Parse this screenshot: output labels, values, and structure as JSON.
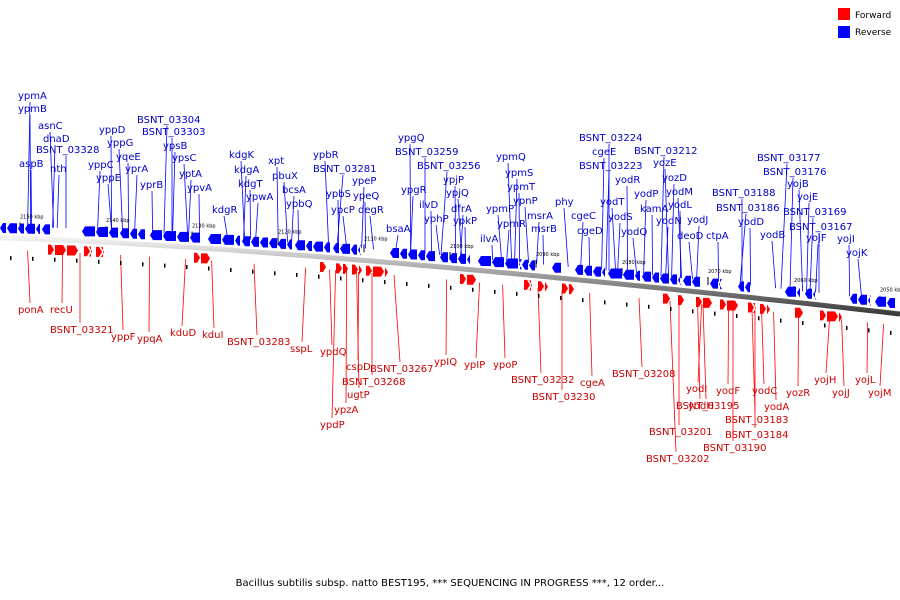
{
  "colors": {
    "forward": "#ff0000",
    "reverse": "#0000ff",
    "fwd_label": "#cc0000",
    "rev_label": "#0000cc",
    "axis": "#808080"
  },
  "legend": [
    {
      "label": "Forward",
      "color": "#ff0000"
    },
    {
      "label": "Reverse",
      "color": "#0000ff"
    }
  ],
  "caption": "Bacillus subtilis subsp. natto BEST195, *** SEQUENCING IN PROGRESS ***, 12 order...",
  "ticks": [
    "2150 kbp",
    "2140 kbp",
    "2130 kbp",
    "2120 kbp",
    "2110 kbp",
    "2100 kbp",
    "2090 kbp",
    "2080 kbp",
    "2070 kbp",
    "2060 kbp",
    "2050 kbp"
  ],
  "reverse_genes": [
    "ypmA",
    "ypmB",
    "asnC",
    "dnaD",
    "aspB",
    "BSNT_03328",
    "nth",
    "yppD",
    "yppG",
    "yppC",
    "yqeE",
    "yppE",
    "ypsB",
    "BSNT_03304",
    "BSNT_03303",
    "yprA",
    "yprB",
    "ypsC",
    "yptA",
    "ypvA",
    "kdgK",
    "kdgA",
    "kdgT",
    "kdgR",
    "ypwA",
    "xpt",
    "pbuX",
    "bcsA",
    "ypbQ",
    "ypbR",
    "BSNT_03281",
    "ypbS",
    "ypcP",
    "ypeP",
    "ypeQ",
    "degR",
    "bsaA",
    "ypgQ",
    "BSNT_03259",
    "ypgR",
    "ilvD",
    "yphP",
    "BSNT_03256",
    "ypjP",
    "ypjQ",
    "dfrA",
    "ypkP",
    "ypmQ",
    "ypmS",
    "ypmT",
    "ypmP",
    "ypmR",
    "ilvA",
    "ypnP",
    "msrA",
    "msrB",
    "phy",
    "cgeC",
    "cgeD",
    "BSNT_03224",
    "cgeE",
    "BSNT_03223",
    "yodT",
    "yodS",
    "yodR",
    "yodQ",
    "yodP",
    "BSNT_03212",
    "yozE",
    "yozD",
    "kamA",
    "yodM",
    "yodN",
    "yodL",
    "deoD",
    "yodJ",
    "ctpA",
    "BSNT_03188",
    "BSNT_03186",
    "yodD",
    "yodB",
    "BSNT_03177",
    "BSNT_03176",
    "yojB",
    "yojE",
    "BSNT_03169",
    "BSNT_03167",
    "yojF",
    "yojI",
    "yojK"
  ],
  "forward_genes": [
    "ponA",
    "recU",
    "BSNT_03321",
    "yppF",
    "ypqA",
    "kduD",
    "kduI",
    "BSNT_03283",
    "sspL",
    "ypdQ",
    "cspD",
    "BSNT_03268",
    "ugtP",
    "ypzA",
    "ypdP",
    "BSNT_03267",
    "ypIQ",
    "ypIP",
    "ypoP",
    "BSNT_03232",
    "BSNT_03230",
    "cgeA",
    "BSNT_03208",
    "yodI",
    "yodH",
    "BSNT_03195",
    "BSNT_03201",
    "BSNT_03202",
    "yodF",
    "BSNT_03190",
    "yodC",
    "BSNT_03183",
    "BSNT_03184",
    "yodA",
    "yozR",
    "yojH",
    "yojJ",
    "yojL",
    "yojM"
  ]
}
